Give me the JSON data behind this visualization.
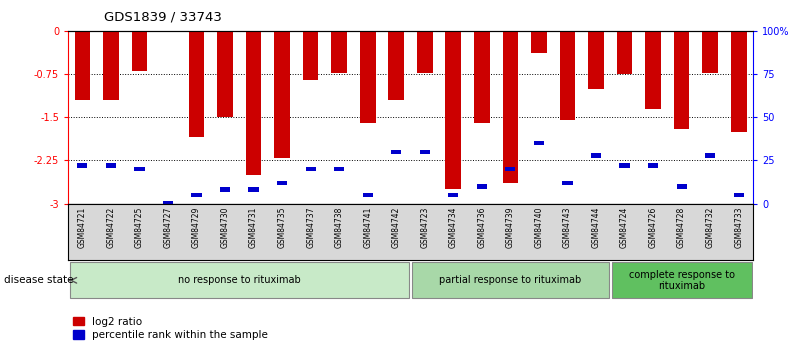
{
  "title": "GDS1839 / 33743",
  "samples": [
    "GSM84721",
    "GSM84722",
    "GSM84725",
    "GSM84727",
    "GSM84729",
    "GSM84730",
    "GSM84731",
    "GSM84735",
    "GSM84737",
    "GSM84738",
    "GSM84741",
    "GSM84742",
    "GSM84723",
    "GSM84734",
    "GSM84736",
    "GSM84739",
    "GSM84740",
    "GSM84743",
    "GSM84744",
    "GSM84724",
    "GSM84726",
    "GSM84728",
    "GSM84732",
    "GSM84733"
  ],
  "log2_ratio": [
    -1.2,
    -1.2,
    -0.7,
    0.0,
    -1.85,
    -1.5,
    -2.5,
    -2.2,
    -0.85,
    -0.73,
    -1.6,
    -1.2,
    -0.73,
    -2.75,
    -1.6,
    -2.65,
    -0.38,
    -1.55,
    -1.0,
    -0.75,
    -1.35,
    -1.7,
    -0.73,
    -1.75
  ],
  "percentile_rank": [
    22,
    22,
    20,
    0,
    5,
    8,
    8,
    12,
    20,
    20,
    5,
    30,
    30,
    5,
    10,
    20,
    35,
    12,
    28,
    22,
    22,
    10,
    28,
    5
  ],
  "groups": [
    {
      "label": "no response to rituximab",
      "start": 0,
      "end": 12,
      "color": "#c8eac8"
    },
    {
      "label": "partial response to rituximab",
      "start": 12,
      "end": 19,
      "color": "#a8d8a8"
    },
    {
      "label": "complete response to\nrituximab",
      "start": 19,
      "end": 24,
      "color": "#60c060"
    }
  ],
  "bar_color": "#cc0000",
  "percentile_color": "#0000cc",
  "ylim_left": [
    -3.0,
    0.0
  ],
  "ylim_right": [
    0,
    100
  ],
  "yticks_left": [
    0.0,
    -0.75,
    -1.5,
    -2.25,
    -3.0
  ],
  "ytick_labels_left": [
    "0",
    "-0.75",
    "-1.5",
    "-2.25",
    "-3"
  ],
  "yticks_right": [
    0,
    25,
    50,
    75,
    100
  ],
  "ytick_labels_right": [
    "0",
    "25",
    "50",
    "75",
    "100%"
  ],
  "bar_width": 0.55,
  "disease_state_label": "disease state",
  "legend": [
    {
      "label": "log2 ratio",
      "color": "#cc0000"
    },
    {
      "label": "percentile rank within the sample",
      "color": "#0000cc"
    }
  ]
}
